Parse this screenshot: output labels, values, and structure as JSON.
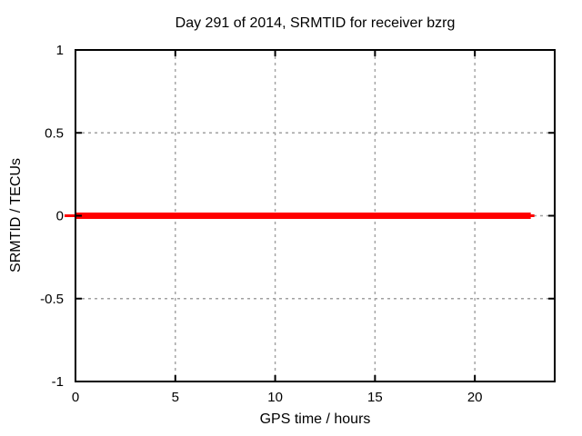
{
  "figure": {
    "background": "#ffffff"
  },
  "chart_data": {
    "type": "line",
    "title": "Day 291 of 2014, SRMTID for receiver bzrg",
    "xlabel": "GPS time / hours",
    "ylabel": "SRMTID / TECUs",
    "xlim": [
      0,
      24
    ],
    "ylim": [
      -1,
      1
    ],
    "x_ticks": [
      0,
      5,
      10,
      15,
      20
    ],
    "y_ticks": [
      -1,
      -0.5,
      0,
      0.5,
      1
    ],
    "grid": true,
    "legend": "none",
    "colors": {
      "line": "#ff0000",
      "grid": "#a0a0a0",
      "axis": "#000000",
      "text": "#000000",
      "background": "#ffffff"
    },
    "series": [
      {
        "name": "SRMTID",
        "type": "line",
        "color": "#ff0000",
        "line_width": 7,
        "x": [
          0,
          22.8
        ],
        "y": [
          0,
          0
        ]
      }
    ]
  }
}
